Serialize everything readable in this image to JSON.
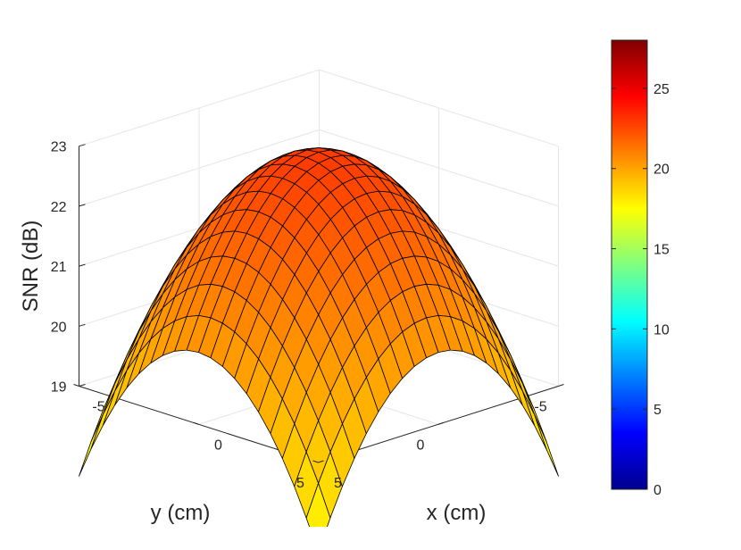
{
  "chart_data": {
    "type": "surface",
    "title": "",
    "xlabel": "x (cm)",
    "ylabel": "y (cm)",
    "zlabel": "SNR (dB)",
    "x_ticks": [
      "-5",
      "0",
      "5"
    ],
    "y_ticks": [
      "-5",
      "0",
      "5"
    ],
    "z_ticks": [
      "19",
      "20",
      "21",
      "22",
      "23"
    ],
    "xlim": [
      -5,
      5
    ],
    "ylim": [
      -5,
      5
    ],
    "zlim": [
      19,
      23
    ],
    "grid": true,
    "colormap": "jet",
    "shading": "faceted",
    "edge_color": "#000000",
    "surface": {
      "function": "paraboloid",
      "peak_snr_db": 22.9,
      "edge_midpoint_snr_db": 20.2,
      "corner_snr_db": 17.5,
      "grid_points_per_axis": 21,
      "x": [
        -5,
        -4.5,
        -4,
        -3.5,
        -3,
        -2.5,
        -2,
        -1.5,
        -1,
        -0.5,
        0,
        0.5,
        1,
        1.5,
        2,
        2.5,
        3,
        3.5,
        4,
        4.5,
        5
      ],
      "y": [
        -5,
        -4.5,
        -4,
        -3.5,
        -3,
        -2.5,
        -2,
        -1.5,
        -1,
        -0.5,
        0,
        0.5,
        1,
        1.5,
        2,
        2.5,
        3,
        3.5,
        4,
        4.5,
        5
      ]
    },
    "colorbar": {
      "location": "right",
      "min": 0,
      "max": 28,
      "ticks": [
        "0",
        "5",
        "10",
        "15",
        "20",
        "25"
      ]
    }
  }
}
